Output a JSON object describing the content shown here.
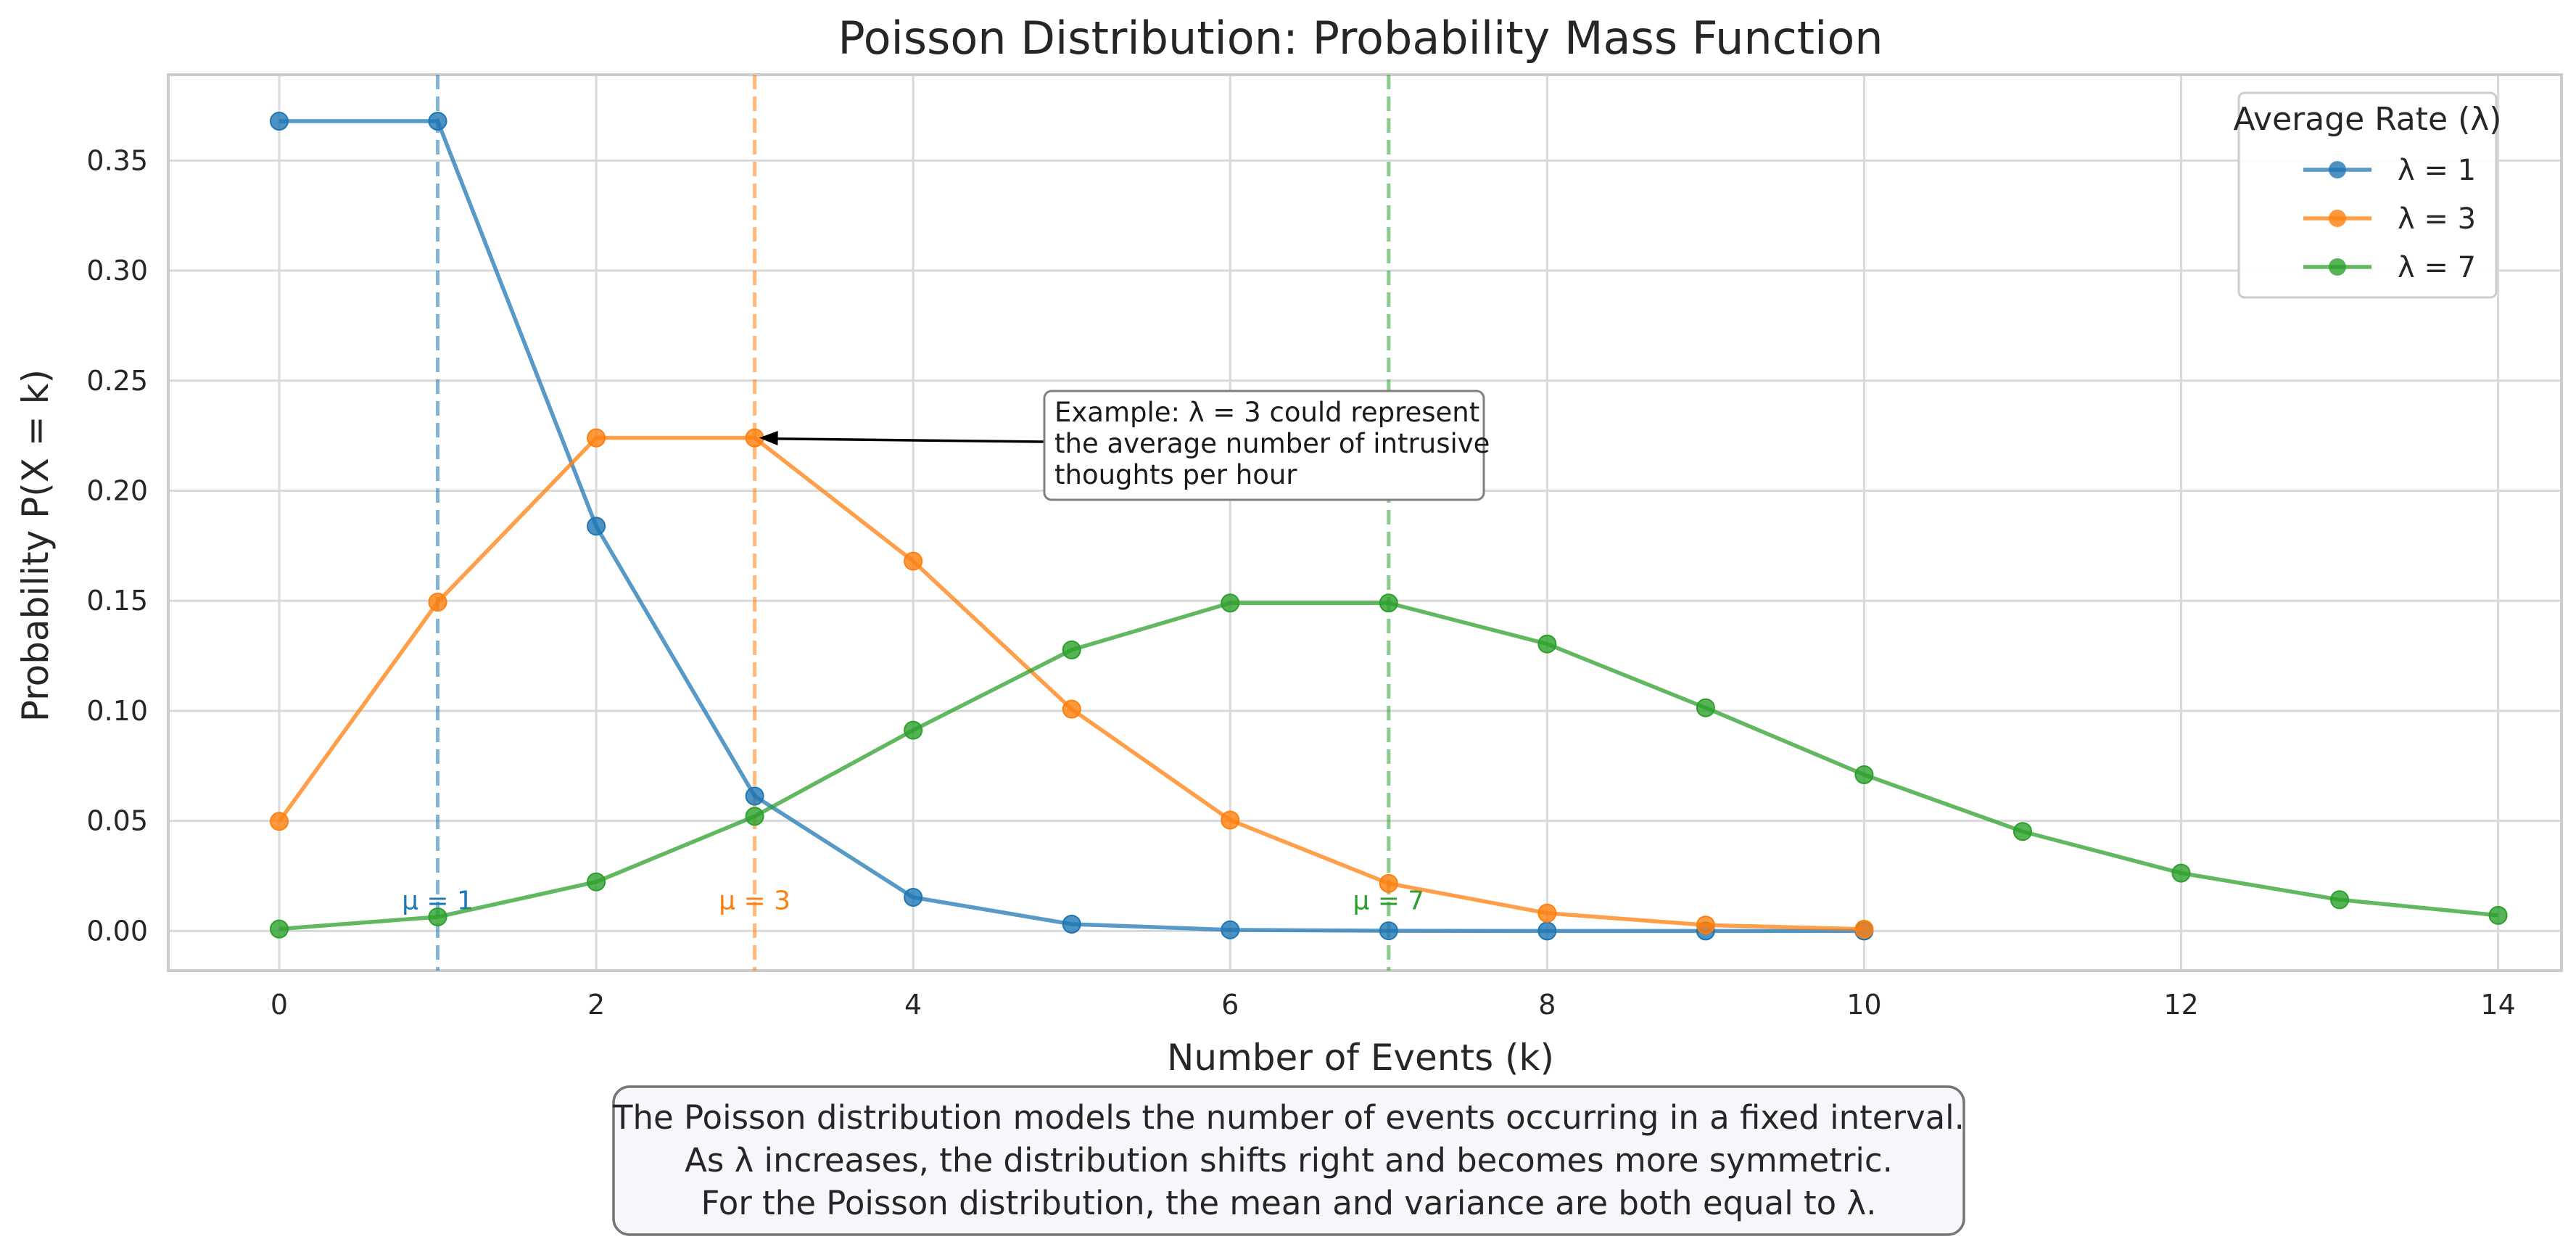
{
  "chart_data": {
    "type": "line",
    "title": "Poisson Distribution: Probability Mass Function",
    "xlabel": "Number of Events (k)",
    "ylabel": "Probability P(X = k)",
    "xlim": [
      -0.7,
      14.4
    ],
    "ylim": [
      -0.018,
      0.389
    ],
    "xticks": [
      0,
      2,
      4,
      6,
      8,
      10,
      12,
      14
    ],
    "xtick_labels": [
      "0",
      "2",
      "4",
      "6",
      "8",
      "10",
      "12",
      "14"
    ],
    "yticks": [
      0.0,
      0.05,
      0.1,
      0.15,
      0.2,
      0.25,
      0.3,
      0.35
    ],
    "ytick_labels": [
      "0.00",
      "0.05",
      "0.10",
      "0.15",
      "0.20",
      "0.25",
      "0.30",
      "0.35"
    ],
    "grid": true,
    "legend": {
      "title": "Average Rate (λ)",
      "position": "top-right"
    },
    "series": [
      {
        "name": "λ = 1",
        "color": "#1f77b4",
        "x": [
          0,
          1,
          2,
          3,
          4,
          5,
          6,
          7,
          8,
          9,
          10
        ],
        "values": [
          0.3679,
          0.3679,
          0.1839,
          0.0613,
          0.0153,
          0.0031,
          0.0005,
          0.0001,
          0.0,
          0.0,
          0.0
        ]
      },
      {
        "name": "λ = 3",
        "color": "#ff7f0e",
        "x": [
          0,
          1,
          2,
          3,
          4,
          5,
          6,
          7,
          8,
          9,
          10
        ],
        "values": [
          0.0498,
          0.1494,
          0.224,
          0.224,
          0.168,
          0.1008,
          0.0504,
          0.0216,
          0.0081,
          0.0027,
          0.0008
        ]
      },
      {
        "name": "λ = 7",
        "color": "#2ca02c",
        "x": [
          0,
          1,
          2,
          3,
          4,
          5,
          6,
          7,
          8,
          9,
          10,
          11,
          12,
          13,
          14
        ],
        "values": [
          0.0009,
          0.0064,
          0.0223,
          0.0521,
          0.0912,
          0.1277,
          0.149,
          0.149,
          0.1304,
          0.1014,
          0.071,
          0.0452,
          0.0263,
          0.0142,
          0.0071
        ]
      }
    ],
    "mean_lines": [
      {
        "x": 1,
        "label": "μ = 1",
        "color": "#1f77b4"
      },
      {
        "x": 3,
        "label": "μ = 3",
        "color": "#ff7f0e"
      },
      {
        "x": 7,
        "label": "μ = 7",
        "color": "#2ca02c"
      }
    ],
    "annotation": {
      "point": [
        3,
        0.224
      ],
      "lines": [
        "Example: λ = 3 could represent",
        "the average number of intrusive",
        "thoughts per hour"
      ]
    }
  },
  "caption": {
    "lines": [
      "The Poisson distribution models the number of events occurring in a fixed interval.",
      "As λ increases, the distribution shifts right and becomes more symmetric.",
      "For the Poisson distribution, the mean and variance are both equal to λ."
    ]
  }
}
